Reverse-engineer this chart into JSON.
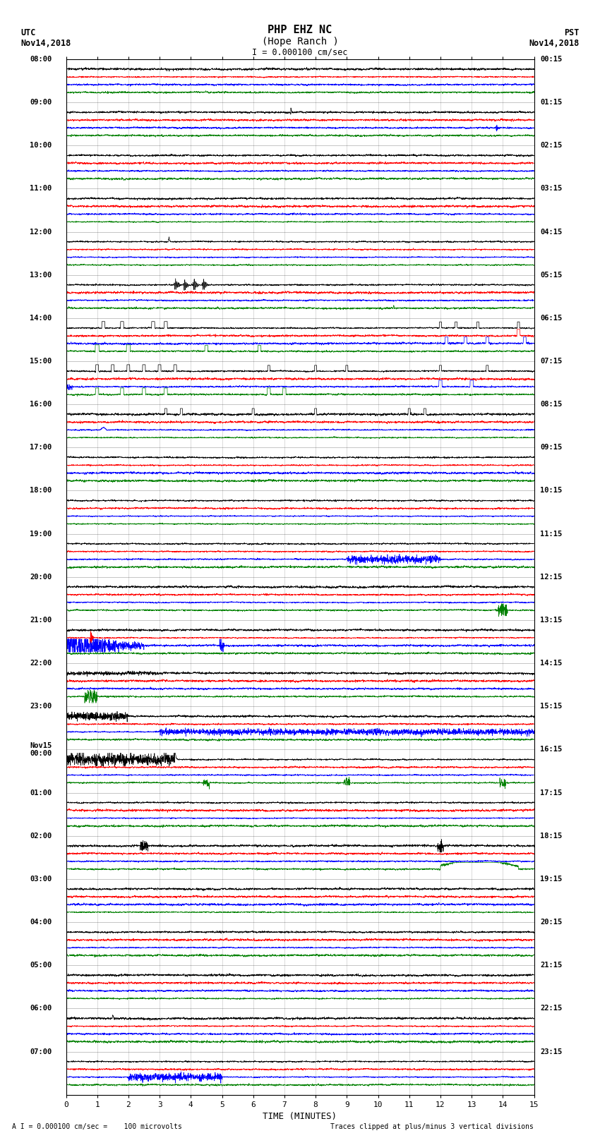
{
  "title_line1": "PHP EHZ NC",
  "title_line2": "(Hope Ranch )",
  "scale_label": "I = 0.000100 cm/sec",
  "left_header_line1": "UTC",
  "left_header_line2": "Nov14,2018",
  "right_header_line1": "PST",
  "right_header_line2": "Nov14,2018",
  "footer_left": "A I = 0.000100 cm/sec =    100 microvolts",
  "footer_right": "Traces clipped at plus/minus 3 vertical divisions",
  "xlabel": "TIME (MINUTES)",
  "utc_labels": [
    "08:00",
    "09:00",
    "10:00",
    "11:00",
    "12:00",
    "13:00",
    "14:00",
    "15:00",
    "16:00",
    "17:00",
    "18:00",
    "19:00",
    "20:00",
    "21:00",
    "22:00",
    "23:00",
    "Nov15\n00:00",
    "01:00",
    "02:00",
    "03:00",
    "04:00",
    "05:00",
    "06:00",
    "07:00"
  ],
  "pst_labels": [
    "00:15",
    "01:15",
    "02:15",
    "03:15",
    "04:15",
    "05:15",
    "06:15",
    "07:15",
    "08:15",
    "09:15",
    "10:15",
    "11:15",
    "12:15",
    "13:15",
    "14:15",
    "15:15",
    "16:15",
    "17:15",
    "18:15",
    "19:15",
    "20:15",
    "21:15",
    "22:15",
    "23:15"
  ],
  "n_rows": 24,
  "n_traces_per_row": 4,
  "trace_colors": [
    "black",
    "red",
    "blue",
    "green"
  ],
  "x_min": 0,
  "x_max": 15,
  "x_ticks": [
    0,
    1,
    2,
    3,
    4,
    5,
    6,
    7,
    8,
    9,
    10,
    11,
    12,
    13,
    14,
    15
  ],
  "background_color": "white",
  "fig_width": 8.5,
  "fig_height": 16.13
}
